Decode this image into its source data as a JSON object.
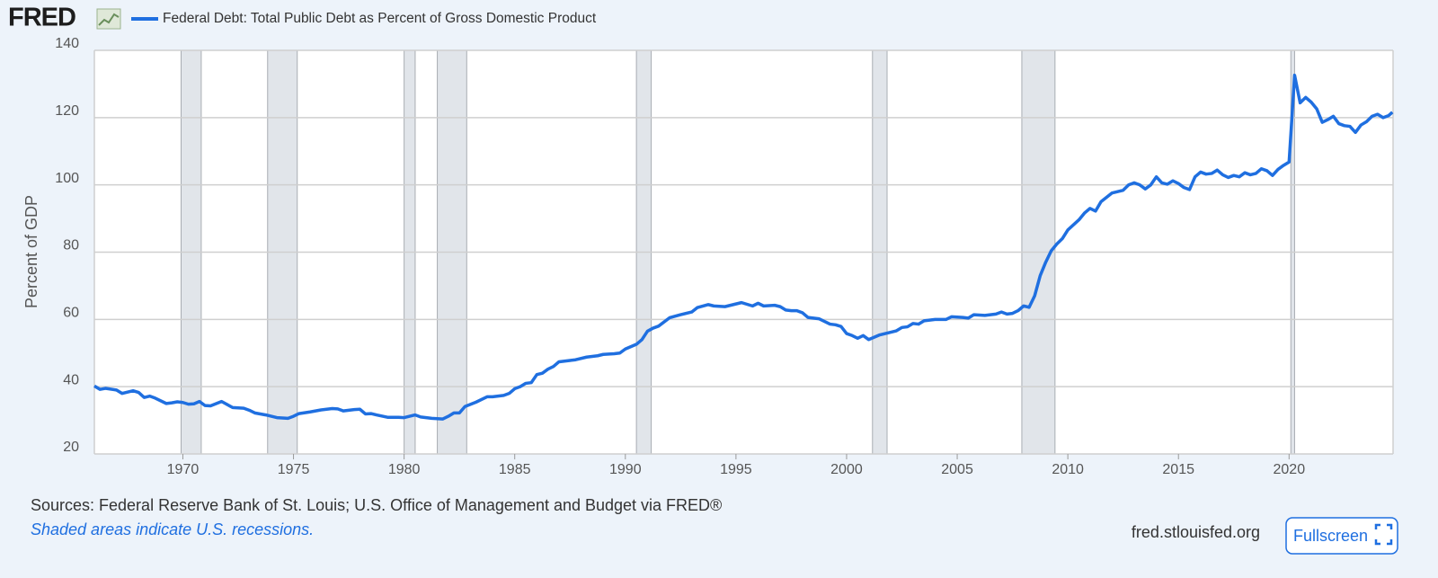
{
  "header": {
    "logo": "FRED"
  },
  "chart_data": {
    "type": "line",
    "ylabel": "Percent of GDP",
    "xlim": [
      1966,
      2024.7
    ],
    "ylim": [
      20,
      140
    ],
    "xticks": [
      1970,
      1975,
      1980,
      1985,
      1990,
      1995,
      2000,
      2005,
      2010,
      2015,
      2020
    ],
    "yticks": [
      20,
      40,
      60,
      80,
      100,
      120,
      140
    ],
    "grid": true,
    "recessions": [
      [
        1969.92,
        1970.83
      ],
      [
        1973.83,
        1975.17
      ],
      [
        1980.0,
        1980.5
      ],
      [
        1981.5,
        1982.83
      ],
      [
        1990.5,
        1991.17
      ],
      [
        2001.17,
        2001.83
      ],
      [
        2007.92,
        2009.42
      ],
      [
        2020.08,
        2020.25
      ]
    ],
    "x": [
      1966.0,
      1966.25,
      1966.5,
      1967.0,
      1967.25,
      1967.75,
      1968.0,
      1968.25,
      1968.5,
      1968.75,
      1969.25,
      1969.5,
      1969.75,
      1970.0,
      1970.25,
      1970.5,
      1970.75,
      1971.0,
      1971.25,
      1971.75,
      1972.25,
      1972.75,
      1973.0,
      1973.25,
      1973.75,
      1974.25,
      1974.75,
      1975.0,
      1975.25,
      1975.75,
      1976.25,
      1976.75,
      1977.0,
      1977.25,
      1977.75,
      1978.0,
      1978.25,
      1978.5,
      1978.75,
      1979.25,
      1979.75,
      1980.0,
      1980.25,
      1980.5,
      1980.75,
      1981.25,
      1981.75,
      1982.0,
      1982.25,
      1982.5,
      1982.75,
      1983.25,
      1983.75,
      1984.0,
      1984.5,
      1984.75,
      1985.0,
      1985.25,
      1985.5,
      1985.75,
      1986.0,
      1986.25,
      1986.5,
      1986.75,
      1987.0,
      1987.5,
      1987.75,
      1988.25,
      1988.75,
      1989.0,
      1989.5,
      1989.75,
      1990.0,
      1990.5,
      1990.75,
      1991.0,
      1991.25,
      1991.5,
      1992.0,
      1992.5,
      1993.0,
      1993.25,
      1993.75,
      1994.0,
      1994.5,
      1995.0,
      1995.25,
      1995.5,
      1995.75,
      1996.0,
      1996.25,
      1996.75,
      1997.0,
      1997.25,
      1997.5,
      1997.75,
      1998.0,
      1998.25,
      1998.75,
      1999.25,
      1999.5,
      1999.75,
      2000.0,
      2000.25,
      2000.5,
      2000.75,
      2001.0,
      2001.5,
      2001.75,
      2002.25,
      2002.5,
      2002.75,
      2003.0,
      2003.25,
      2003.5,
      2004.0,
      2004.5,
      2004.75,
      2005.25,
      2005.5,
      2005.75,
      2006.25,
      2006.75,
      2007.0,
      2007.25,
      2007.5,
      2007.75,
      2008.0,
      2008.25,
      2008.5,
      2008.75,
      2009.0,
      2009.25,
      2009.5,
      2009.75,
      2010.0,
      2010.5,
      2010.75,
      2011.0,
      2011.25,
      2011.5,
      2012.0,
      2012.5,
      2012.75,
      2013.0,
      2013.25,
      2013.5,
      2013.75,
      2014.0,
      2014.25,
      2014.5,
      2014.75,
      2015.0,
      2015.25,
      2015.5,
      2015.75,
      2016.0,
      2016.25,
      2016.5,
      2016.75,
      2017.0,
      2017.25,
      2017.5,
      2017.75,
      2018.0,
      2018.25,
      2018.5,
      2018.75,
      2019.0,
      2019.25,
      2019.5,
      2019.75,
      2020.0,
      2020.25,
      2020.5,
      2020.75,
      2021.0,
      2021.25,
      2021.5,
      2021.75,
      2022.0,
      2022.25,
      2022.5,
      2022.75,
      2023.0,
      2023.25,
      2023.5,
      2023.75,
      2024.0,
      2024.25,
      2024.5,
      2024.67
    ],
    "series": [
      {
        "name": "Federal Debt: Total Public Debt as Percent of Gross Domestic Product",
        "color": "#1f6fe0",
        "values": [
          40.2,
          39.2,
          39.5,
          39.0,
          38.0,
          38.8,
          38.3,
          36.8,
          37.2,
          36.6,
          35.0,
          35.2,
          35.5,
          35.3,
          34.8,
          34.9,
          35.6,
          34.4,
          34.3,
          35.6,
          33.8,
          33.6,
          33.0,
          32.2,
          31.6,
          30.8,
          30.6,
          31.2,
          32.0,
          32.5,
          33.1,
          33.5,
          33.4,
          32.8,
          33.2,
          33.3,
          31.9,
          32.0,
          31.6,
          30.9,
          30.9,
          30.8,
          31.2,
          31.6,
          31.0,
          30.6,
          30.4,
          31.2,
          32.2,
          32.2,
          34.1,
          35.4,
          37.0,
          37.0,
          37.4,
          38.0,
          39.4,
          40.0,
          41.0,
          41.2,
          43.6,
          44.0,
          45.2,
          46.0,
          47.4,
          47.8,
          48.0,
          48.8,
          49.2,
          49.6,
          49.8,
          50.0,
          51.2,
          52.6,
          54.0,
          56.5,
          57.4,
          58.0,
          60.5,
          61.4,
          62.2,
          63.5,
          64.4,
          64.0,
          63.8,
          64.6,
          65.0,
          64.5,
          64.0,
          64.8,
          64.0,
          64.2,
          63.8,
          62.8,
          62.6,
          62.6,
          62.0,
          60.6,
          60.2,
          58.6,
          58.4,
          57.9,
          55.8,
          55.2,
          54.4,
          55.2,
          54.0,
          55.4,
          55.8,
          56.6,
          57.6,
          57.8,
          58.8,
          58.6,
          59.6,
          60.0,
          60.0,
          60.8,
          60.6,
          60.4,
          61.4,
          61.2,
          61.6,
          62.2,
          61.6,
          61.8,
          62.6,
          64.0,
          63.6,
          67.0,
          73.0,
          77.0,
          80.4,
          82.4,
          84.0,
          86.6,
          89.6,
          91.6,
          93.0,
          92.2,
          95.0,
          97.6,
          98.4,
          100.0,
          100.6,
          100.0,
          98.8,
          100.0,
          102.4,
          100.6,
          100.2,
          101.2,
          100.4,
          99.2,
          98.6,
          102.4,
          103.8,
          103.2,
          103.4,
          104.4,
          103.0,
          102.2,
          102.8,
          102.4,
          103.6,
          103.0,
          103.4,
          104.8,
          104.2,
          102.8,
          104.6,
          105.8,
          106.8,
          132.6,
          124.4,
          126.0,
          124.6,
          122.6,
          118.6,
          119.4,
          120.4,
          118.2,
          117.6,
          117.4,
          115.6,
          117.8,
          118.8,
          120.4,
          121.0,
          120.0,
          120.6,
          121.6
        ]
      }
    ]
  },
  "footer": {
    "sources": "Sources: Federal Reserve Bank of St. Louis; U.S. Office of Management and Budget via FRED®",
    "note": "Shaded areas indicate U.S. recessions.",
    "site": "fred.stlouisfed.org",
    "button": "Fullscreen"
  }
}
